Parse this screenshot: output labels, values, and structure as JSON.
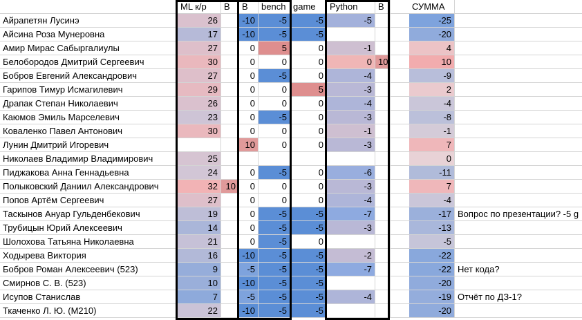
{
  "header": [
    "",
    "ML к/р",
    "B",
    "B",
    "bench",
    "game",
    "Python",
    "B",
    "",
    "СУММА",
    ""
  ],
  "students": [
    {
      "name": "Айрапетян Лусинэ",
      "ml": "26",
      "b1": "",
      "b2": "-10",
      "bench": "-5",
      "game": "-5",
      "python": "-5",
      "b3": "",
      "sum": "-25",
      "note": ""
    },
    {
      "name": "Айсина Роза Мунеровна",
      "ml": "17",
      "b1": "",
      "b2": "-10",
      "bench": "-5",
      "game": "-5",
      "python": "",
      "b3": "",
      "sum": "-20",
      "note": ""
    },
    {
      "name": "Амир Мирас Сабыргалиулы",
      "ml": "27",
      "b1": "",
      "b2": "0",
      "bench": "5",
      "game": "0",
      "python": "-1",
      "b3": "",
      "sum": "4",
      "note": ""
    },
    {
      "name": "Белобородов Дмитрий Сергеевич",
      "ml": "30",
      "b1": "",
      "b2": "0",
      "bench": "0",
      "game": "0",
      "python": "0",
      "b3": "10",
      "sum": "10",
      "note": ""
    },
    {
      "name": "Бобров Евгений Александрович",
      "ml": "27",
      "b1": "",
      "b2": "0",
      "bench": "-5",
      "game": "0",
      "python": "-4",
      "b3": "",
      "sum": "-9",
      "note": ""
    },
    {
      "name": "Гарипов Тимур Исмагилевич",
      "ml": "29",
      "b1": "",
      "b2": "0",
      "bench": "0",
      "game": "5",
      "python": "-3",
      "b3": "",
      "sum": "2",
      "note": ""
    },
    {
      "name": "Драпак Степан Николаевич",
      "ml": "26",
      "b1": "",
      "b2": "0",
      "bench": "0",
      "game": "0",
      "python": "-4",
      "b3": "",
      "sum": "-4",
      "note": ""
    },
    {
      "name": "Каюмов Эмиль Марселевич",
      "ml": "23",
      "b1": "",
      "b2": "0",
      "bench": "-5",
      "game": "0",
      "python": "-3",
      "b3": "",
      "sum": "-8",
      "note": ""
    },
    {
      "name": "Коваленко Павел Антонович",
      "ml": "30",
      "b1": "",
      "b2": "0",
      "bench": "0",
      "game": "0",
      "python": "-1",
      "b3": "",
      "sum": "-1",
      "note": ""
    },
    {
      "name": "Лунин Дмитрий Игоревич",
      "ml": "",
      "b1": "",
      "b2": "10",
      "bench": "0",
      "game": "0",
      "python": "-3",
      "b3": "",
      "sum": "7",
      "note": ""
    },
    {
      "name": "Николаев Владимир Владимирович",
      "ml": "25",
      "b1": "",
      "b2": "",
      "bench": "",
      "game": "",
      "python": "",
      "b3": "",
      "sum": "0",
      "note": ""
    },
    {
      "name": "Пиджакова Анна Геннадьевна",
      "ml": "24",
      "b1": "",
      "b2": "0",
      "bench": "-5",
      "game": "0",
      "python": "-6",
      "b3": "",
      "sum": "-11",
      "note": ""
    },
    {
      "name": "Полыковский Даниил Александрович",
      "ml": "32",
      "b1": "10",
      "b2": "0",
      "bench": "0",
      "game": "0",
      "python": "-3",
      "b3": "",
      "sum": "7",
      "note": ""
    },
    {
      "name": "Попов Артём Сергеевич",
      "ml": "27",
      "b1": "",
      "b2": "0",
      "bench": "0",
      "game": "0",
      "python": "-4",
      "b3": "",
      "sum": "-4",
      "note": ""
    },
    {
      "name": "Таскынов Ануар Гульденбекович",
      "ml": "19",
      "b1": "",
      "b2": "0",
      "bench": "-5",
      "game": "-5",
      "python": "-7",
      "b3": "",
      "sum": "-17",
      "note": "Вопрос по презентации? -5 g"
    },
    {
      "name": "Трубицын Юрий Алексеевич",
      "ml": "14",
      "b1": "",
      "b2": "0",
      "bench": "-5",
      "game": "-5",
      "python": "-3",
      "b3": "",
      "sum": "-13",
      "note": ""
    },
    {
      "name": "Шолохова Татьяна Николаевна",
      "ml": "21",
      "b1": "",
      "b2": "0",
      "bench": "-5",
      "game": "0",
      "python": "",
      "b3": "",
      "sum": "-5",
      "note": ""
    },
    {
      "name": "Ходырева Виктория",
      "ml": "16",
      "b1": "",
      "b2": "-10",
      "bench": "-5",
      "game": "-5",
      "python": "-2",
      "b3": "",
      "sum": "-22",
      "note": ""
    },
    {
      "name": "Бобров Роман Алексеевич (523)",
      "ml": "9",
      "b1": "",
      "b2": "-5",
      "bench": "-5",
      "game": "-5",
      "python": "-7",
      "b3": "",
      "sum": "-22",
      "note": "Нет кода?"
    },
    {
      "name": "Смирнов С. В. (523)",
      "ml": "10",
      "b1": "",
      "b2": "-10",
      "bench": "-5",
      "game": "-5",
      "python": "",
      "b3": "",
      "sum": "-20",
      "note": ""
    },
    {
      "name": "Исупов Станислав",
      "ml": "7",
      "b1": "",
      "b2": "-5",
      "bench": "-5",
      "game": "-5",
      "python": "-4",
      "b3": "",
      "sum": "-19",
      "note": "Отчёт по ДЗ-1?"
    },
    {
      "name": "Ткаченко Л. Ю. (M210)",
      "ml": "22",
      "b1": "",
      "b2": "-10",
      "bench": "-5",
      "game": "-5",
      "python": "",
      "b3": "",
      "sum": "-20",
      "note": ""
    }
  ],
  "colors": {
    "ml_scale": {
      "min": "#8eaadb",
      "mid": "#d2c6d6",
      "max": "#f2b3b5"
    },
    "bench_minus5": "#5b8ed6",
    "bench_plus5": "#de8e8e",
    "b_minus10": "#5b8ed6",
    "b_minus5": "#7ea3dd",
    "b_plus10": "#e09a9a",
    "game_minus5": "#5b8ed6",
    "game_plus5": "#de8e8e",
    "gridline": "#d4d4d4",
    "frame": "#000000"
  }
}
